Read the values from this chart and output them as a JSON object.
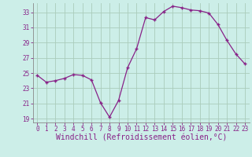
{
  "x": [
    0,
    1,
    2,
    3,
    4,
    5,
    6,
    7,
    8,
    9,
    10,
    11,
    12,
    13,
    14,
    15,
    16,
    17,
    18,
    19,
    20,
    21,
    22,
    23
  ],
  "y": [
    24.7,
    23.8,
    24.0,
    24.3,
    24.8,
    24.7,
    24.1,
    21.1,
    19.2,
    21.4,
    25.7,
    28.2,
    32.3,
    32.0,
    33.1,
    33.8,
    33.6,
    33.3,
    33.2,
    32.9,
    31.4,
    29.3,
    27.5,
    26.2
  ],
  "ylim": [
    18.5,
    34.2
  ],
  "yticks": [
    19,
    21,
    23,
    25,
    27,
    29,
    31,
    33
  ],
  "xlim": [
    -0.5,
    23.5
  ],
  "xticks": [
    0,
    1,
    2,
    3,
    4,
    5,
    6,
    7,
    8,
    9,
    10,
    11,
    12,
    13,
    14,
    15,
    16,
    17,
    18,
    19,
    20,
    21,
    22,
    23
  ],
  "line_color": "#882288",
  "marker_color": "#882288",
  "bg_color": "#cceee8",
  "grid_color": "#aaccbb",
  "axis_color": "#555555",
  "tick_color": "#882288",
  "xlabel": "Windchill (Refroidissement éolien,°C)",
  "tick_fontsize": 5.5,
  "xlabel_fontsize": 7.0
}
